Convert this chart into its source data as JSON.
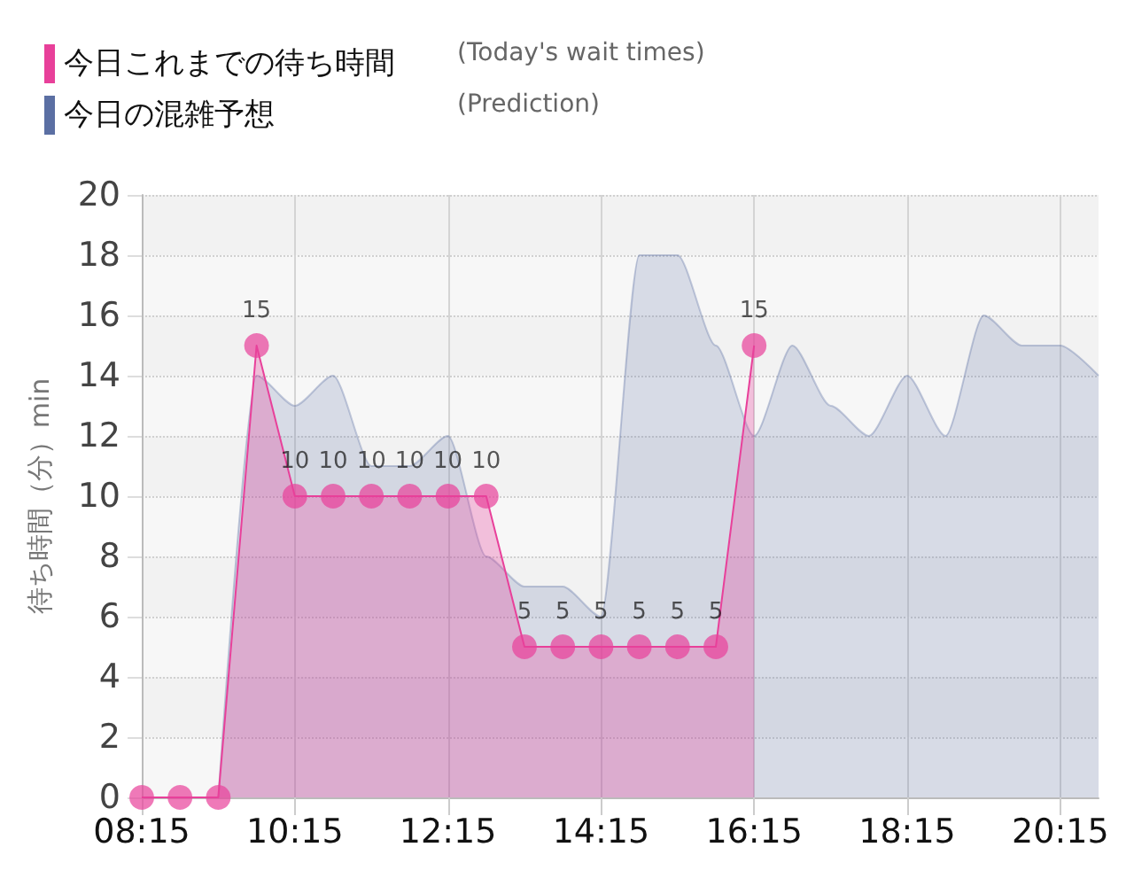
{
  "chart_data": {
    "type": "area",
    "ylabel": "待ち時間（分）min",
    "annotations": [
      "(Today's wait times)",
      "(Prediction)"
    ],
    "xlim": [
      8.25,
      20.75
    ],
    "xticks": [
      {
        "value": 8.25,
        "label": "08:15"
      },
      {
        "value": 10.25,
        "label": "10:15"
      },
      {
        "value": 12.25,
        "label": "12:15"
      },
      {
        "value": 14.25,
        "label": "14:15"
      },
      {
        "value": 16.25,
        "label": "16:15"
      },
      {
        "value": 18.25,
        "label": "18:15"
      },
      {
        "value": 20.25,
        "label": "20:15"
      }
    ],
    "ylim": [
      0,
      20
    ],
    "yticks": [
      0,
      2,
      4,
      6,
      8,
      10,
      12,
      14,
      16,
      18,
      20
    ],
    "grid": true,
    "legend": "top left",
    "marker": "circle",
    "series": [
      {
        "name": "今日これまでの待ち時間",
        "color": "#e8409a",
        "x": [
          8.25,
          8.75,
          9.25,
          9.75,
          10.25,
          10.75,
          11.25,
          11.75,
          12.25,
          12.75,
          13.25,
          13.75,
          14.25,
          14.75,
          15.25,
          15.75,
          16.25
        ],
        "values": [
          0,
          0,
          0,
          15,
          10,
          10,
          10,
          10,
          10,
          10,
          5,
          5,
          5,
          5,
          5,
          5,
          15
        ],
        "value_labels": [
          null,
          null,
          null,
          "15",
          "10",
          "10",
          "10",
          "10",
          "10",
          "10",
          "5",
          "5",
          "5",
          "5",
          "5",
          "5",
          "15"
        ]
      },
      {
        "name": "今日の混雑予想",
        "color": "#5b6fa3",
        "marker": "none",
        "x": [
          9.25,
          9.75,
          10.25,
          10.75,
          11.25,
          11.75,
          12.25,
          12.75,
          13.25,
          13.75,
          14.25,
          14.75,
          15.25,
          15.75,
          16.25,
          16.75,
          17.25,
          17.75,
          18.25,
          18.75,
          19.25,
          19.75,
          20.25,
          20.75
        ],
        "values": [
          0,
          14,
          13,
          14,
          11,
          11,
          12,
          8,
          7,
          7,
          6,
          18,
          18,
          15,
          12,
          15,
          13,
          12,
          14,
          12,
          16,
          15,
          15,
          14
        ]
      }
    ]
  }
}
